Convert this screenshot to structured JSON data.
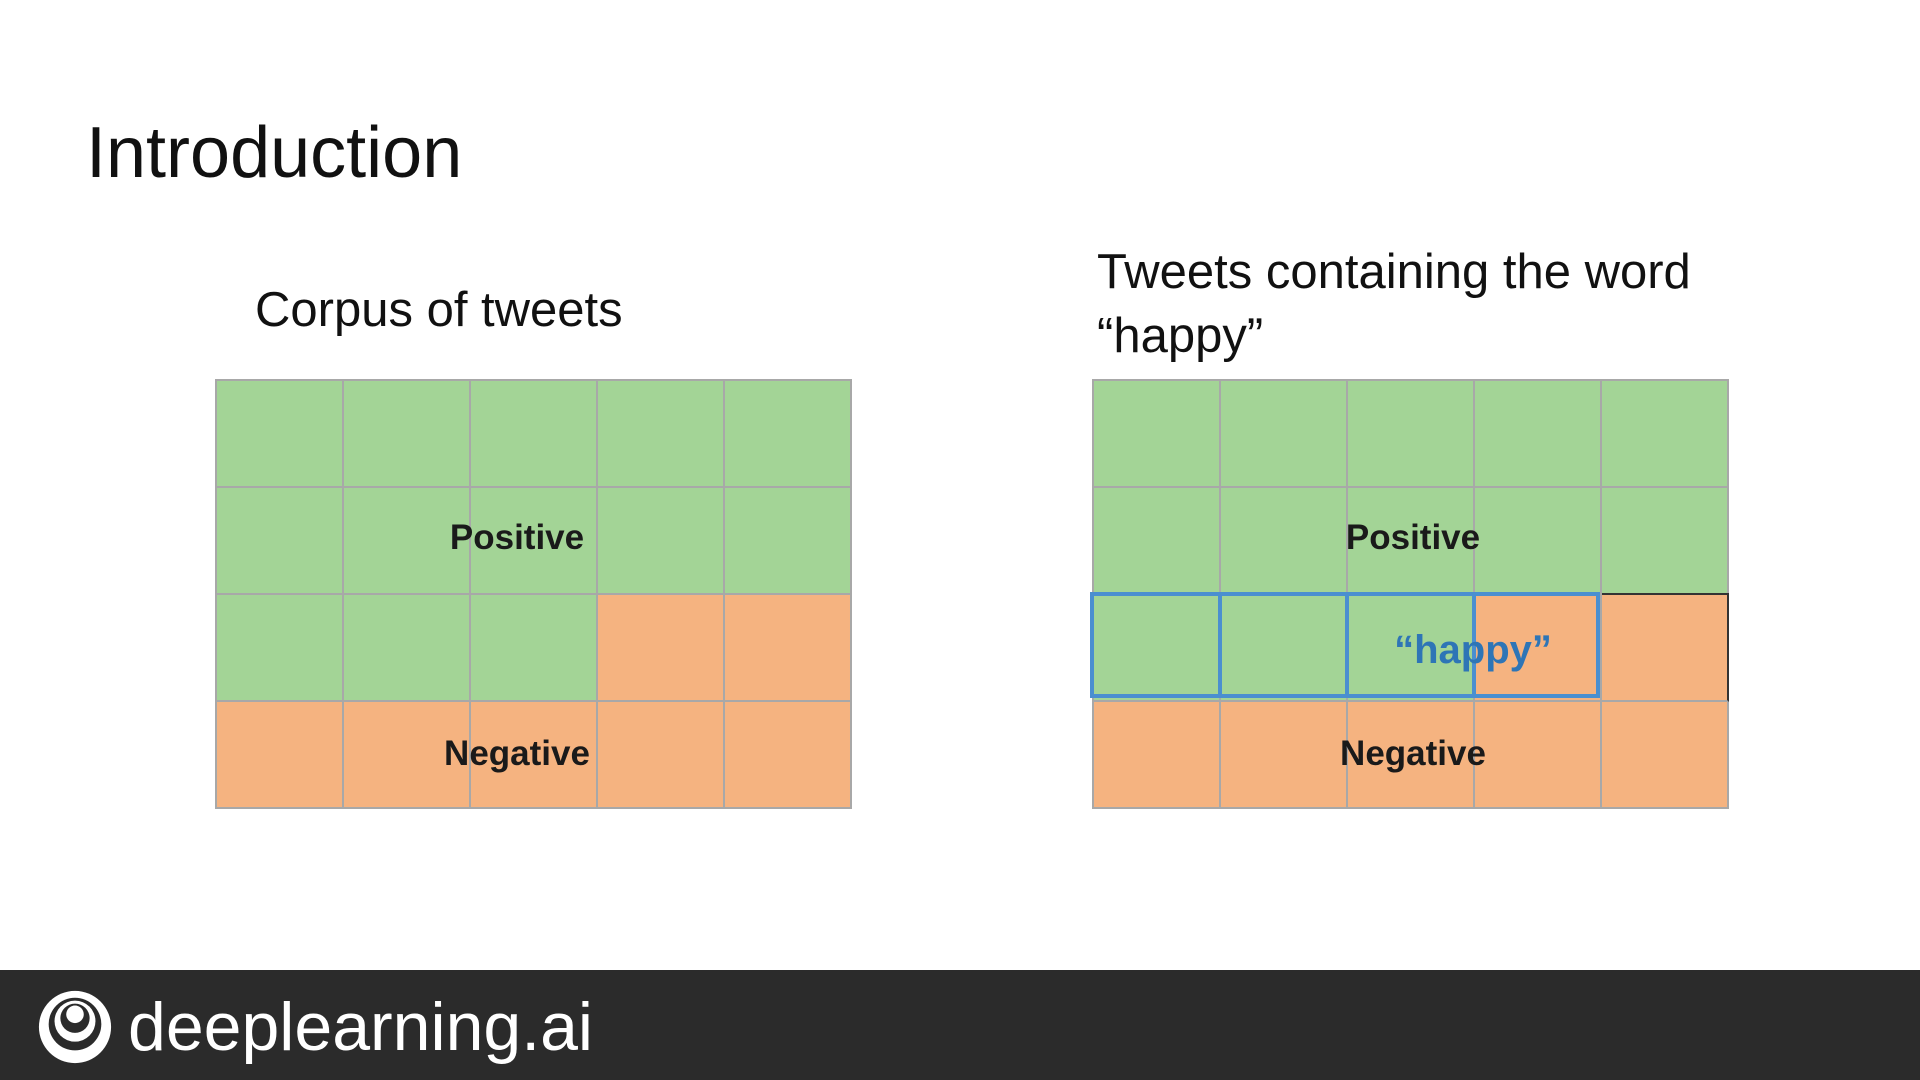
{
  "slide": {
    "title": "Introduction"
  },
  "left_panel": {
    "caption": "Corpus of tweets",
    "positive_label": "Positive",
    "negative_label": "Negative",
    "grid": [
      [
        "pos",
        "pos",
        "pos",
        "pos",
        "pos"
      ],
      [
        "pos",
        "pos",
        "pos",
        "pos",
        "pos"
      ],
      [
        "pos",
        "pos",
        "pos",
        "neg",
        "neg"
      ],
      [
        "neg",
        "neg",
        "neg",
        "neg",
        "neg"
      ]
    ]
  },
  "right_panel": {
    "caption": "Tweets containing the word “happy”",
    "positive_label": "Positive",
    "negative_label": "Negative",
    "highlight_label": "“happy”",
    "grid": [
      [
        "pos",
        "pos",
        "pos",
        "pos",
        "pos"
      ],
      [
        "pos",
        "pos",
        "pos",
        "pos",
        "pos"
      ],
      [
        "pos",
        "pos",
        "pos",
        "neg",
        "neg"
      ],
      [
        "neg",
        "neg",
        "neg",
        "neg",
        "neg"
      ]
    ]
  },
  "colors": {
    "positive": "#a3d496",
    "negative": "#f5b380",
    "highlight": "#4a8fd0",
    "footer": "#2b2b2b"
  },
  "footer": {
    "brand": "deeplearning.ai",
    "logo_icon": "deeplearning-logo-icon"
  }
}
